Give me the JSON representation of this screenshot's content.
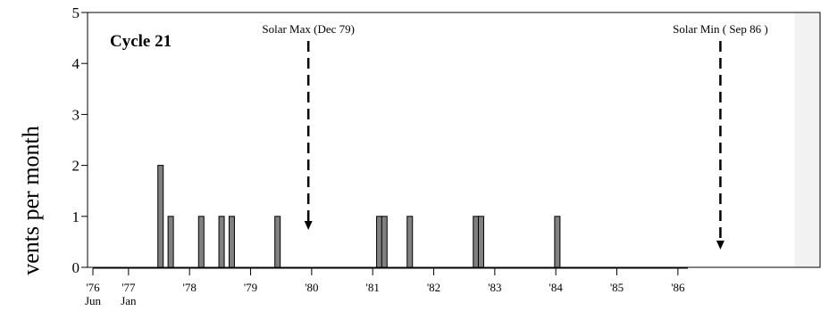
{
  "chart_data": {
    "type": "bar",
    "title": "Cycle 21",
    "ylabel": "vents per month",
    "xlabel": "",
    "ylim": [
      0,
      5
    ],
    "yticks": [
      0,
      1,
      2,
      3,
      4,
      5
    ],
    "xlim": [
      "1976-06",
      "1988-06"
    ],
    "grid": false,
    "xticks": [
      {
        "date": "1976-06",
        "label": "'76",
        "sublabel": "Jun"
      },
      {
        "date": "1977-01",
        "label": "'77",
        "sublabel": "Jan"
      },
      {
        "date": "1978-01",
        "label": "'78",
        "sublabel": ""
      },
      {
        "date": "1979-01",
        "label": "'79",
        "sublabel": ""
      },
      {
        "date": "1980-01",
        "label": "'80",
        "sublabel": ""
      },
      {
        "date": "1981-01",
        "label": "'81",
        "sublabel": ""
      },
      {
        "date": "1982-01",
        "label": "'82",
        "sublabel": ""
      },
      {
        "date": "1983-01",
        "label": "'83",
        "sublabel": ""
      },
      {
        "date": "1984-01",
        "label": "'84",
        "sublabel": ""
      },
      {
        "date": "1985-01",
        "label": "'85",
        "sublabel": ""
      },
      {
        "date": "1986-01",
        "label": "'86",
        "sublabel": ""
      }
    ],
    "bars": [
      {
        "date": "1977-08",
        "value": 2
      },
      {
        "date": "1977-10",
        "value": 1
      },
      {
        "date": "1978-04",
        "value": 1
      },
      {
        "date": "1978-08",
        "value": 1
      },
      {
        "date": "1978-10",
        "value": 1
      },
      {
        "date": "1979-07",
        "value": 1
      },
      {
        "date": "1981-03",
        "value": 1
      },
      {
        "date": "1981-04",
        "value": 1
      },
      {
        "date": "1981-09",
        "value": 1
      },
      {
        "date": "1982-10",
        "value": 1
      },
      {
        "date": "1982-11",
        "value": 1
      },
      {
        "date": "1984-02",
        "value": 1
      }
    ],
    "annotations": [
      {
        "label": "Solar Max (Dec 79)",
        "date": "1979-12"
      },
      {
        "label": "Solar Min ( Sep 86 )",
        "date": "1986-09"
      }
    ],
    "colors": {
      "bar_fill": "#808080",
      "bar_stroke": "#000000",
      "axis": "#000000",
      "shaded_region": "#f2f2f2"
    },
    "shaded_region_start": "1988-01"
  }
}
